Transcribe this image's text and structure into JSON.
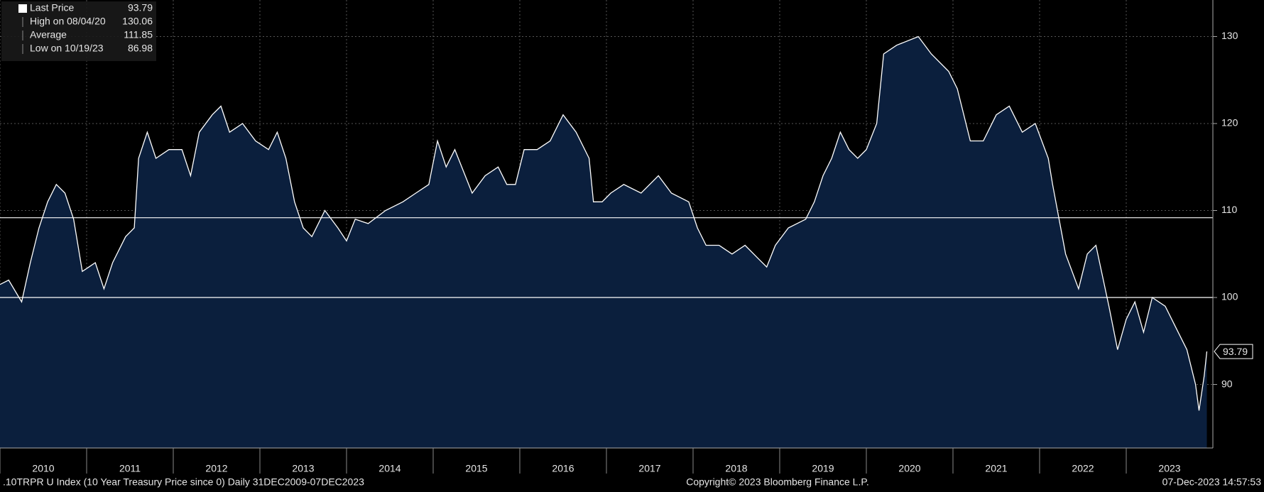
{
  "chart_data": {
    "type": "area",
    "x": [
      2010.0,
      2010.1,
      2010.25,
      2010.35,
      2010.45,
      2010.55,
      2010.65,
      2010.75,
      2010.85,
      2010.95,
      2011.1,
      2011.2,
      2011.3,
      2011.45,
      2011.55,
      2011.6,
      2011.7,
      2011.8,
      2011.95,
      2012.1,
      2012.2,
      2012.3,
      2012.45,
      2012.55,
      2012.65,
      2012.8,
      2012.95,
      2013.1,
      2013.2,
      2013.3,
      2013.4,
      2013.5,
      2013.6,
      2013.75,
      2013.9,
      2014.0,
      2014.1,
      2014.25,
      2014.45,
      2014.65,
      2014.8,
      2014.95,
      2015.05,
      2015.15,
      2015.25,
      2015.45,
      2015.6,
      2015.75,
      2015.85,
      2015.95,
      2016.05,
      2016.2,
      2016.35,
      2016.5,
      2016.65,
      2016.8,
      2016.85,
      2016.95,
      2017.05,
      2017.2,
      2017.4,
      2017.6,
      2017.75,
      2017.95,
      2018.05,
      2018.15,
      2018.3,
      2018.45,
      2018.6,
      2018.75,
      2018.85,
      2018.95,
      2019.1,
      2019.3,
      2019.4,
      2019.5,
      2019.6,
      2019.7,
      2019.8,
      2019.9,
      2020.0,
      2020.12,
      2020.2,
      2020.35,
      2020.6,
      2020.75,
      2020.95,
      2021.05,
      2021.2,
      2021.35,
      2021.5,
      2021.65,
      2021.8,
      2021.95,
      2022.1,
      2022.15,
      2022.3,
      2022.45,
      2022.55,
      2022.65,
      2022.8,
      2022.9,
      2023.0,
      2023.1,
      2023.2,
      2023.3,
      2023.45,
      2023.55,
      2023.7,
      2023.8,
      2023.84,
      2023.9,
      2023.93
    ],
    "series": [
      {
        "name": "Last Price",
        "color": "#ffffff",
        "fill": "#0b1f3d",
        "values": [
          101.5,
          102,
          99.5,
          104,
          108,
          111,
          113,
          112,
          109,
          103,
          104,
          101,
          104,
          107,
          108,
          116,
          119,
          116,
          117,
          117,
          114,
          119,
          121,
          122,
          119,
          120,
          118,
          117,
          119,
          116,
          111,
          108,
          107,
          110,
          108,
          106.5,
          109,
          108.5,
          110,
          111,
          112,
          113,
          118,
          115,
          117,
          112,
          114,
          115,
          113,
          113,
          117,
          117,
          118,
          121,
          119,
          116,
          111,
          111,
          112,
          113,
          112,
          114,
          112,
          111,
          108,
          106,
          106,
          105,
          106,
          104.5,
          103.5,
          106,
          108,
          109,
          111,
          114,
          116,
          119,
          117,
          116,
          117,
          120,
          128,
          129,
          130,
          128,
          126,
          124,
          118,
          118,
          121,
          122,
          119,
          120,
          116,
          113,
          105,
          101,
          105,
          106,
          99,
          94,
          97.5,
          99.5,
          96,
          100,
          99,
          97,
          94,
          90,
          87,
          91,
          93.79
        ]
      }
    ],
    "legend": [
      {
        "label": "Last Price",
        "value": 93.79
      },
      {
        "label": "High on 08/04/20",
        "value": 130.06
      },
      {
        "label": "Average",
        "value": 111.85
      },
      {
        "label": "Low on 10/19/23",
        "value": 86.98
      }
    ],
    "last_value": 93.79,
    "reference_lines": [
      100,
      109.17
    ],
    "xlim": [
      2010,
      2024
    ],
    "xticks": [
      2010,
      2011,
      2012,
      2013,
      2014,
      2015,
      2016,
      2017,
      2018,
      2019,
      2020,
      2021,
      2022,
      2023
    ],
    "ylim": [
      82.7,
      134.2
    ],
    "yticks": [
      90,
      100,
      110,
      120,
      130
    ],
    "grid": true,
    "footer_left": ".10TRPR U Index (10 Year Treasury Price since 0)  Daily 31DEC2009-07DEC2023",
    "footer_center": "Copyright© 2023 Bloomberg Finance L.P.",
    "footer_right": "07-Dec-2023 14:57:53"
  }
}
